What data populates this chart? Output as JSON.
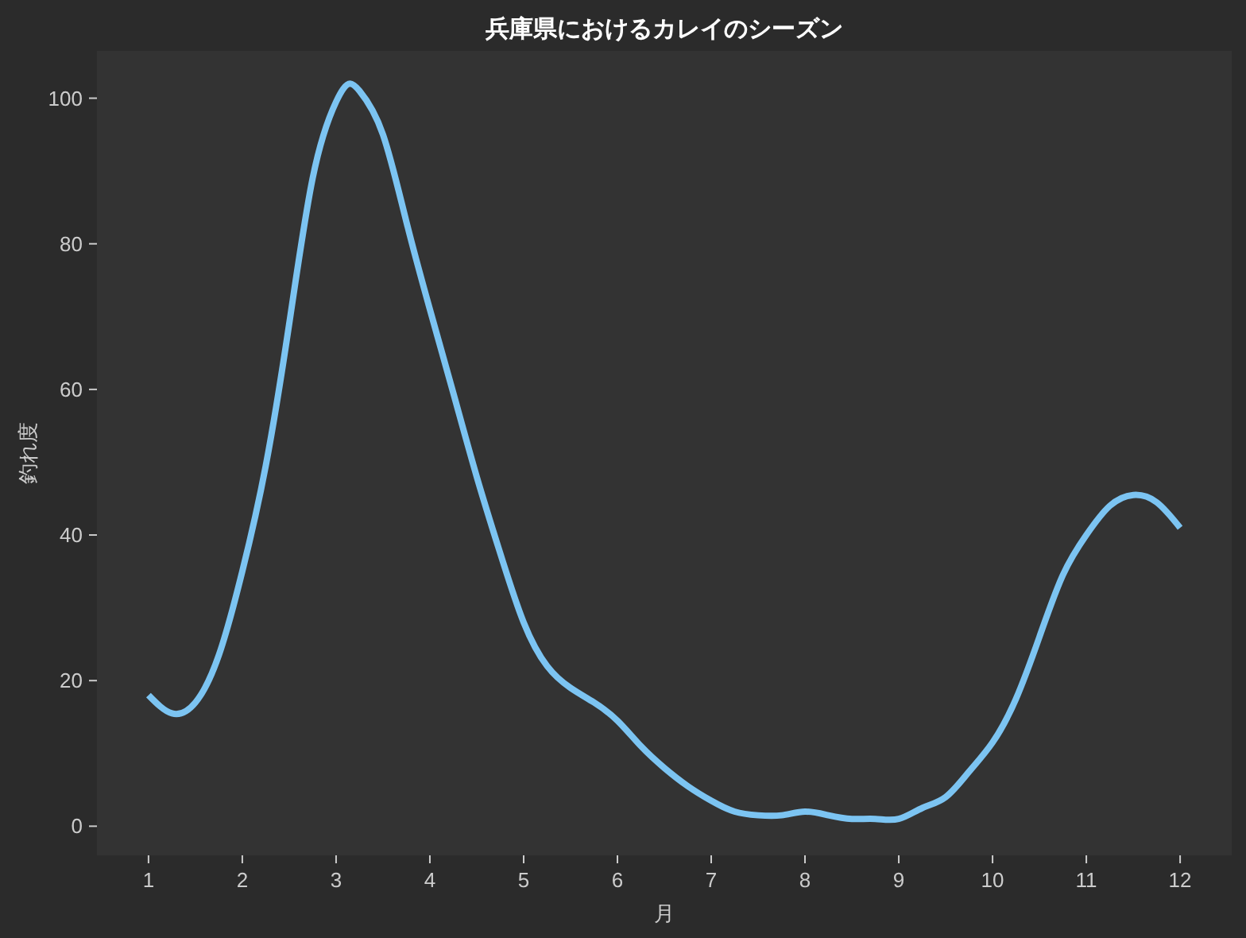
{
  "chart_data": {
    "type": "line",
    "title": "兵庫県におけるカレイのシーズン",
    "xlabel": "月",
    "ylabel": "釣れ度",
    "x": [
      1,
      1.25,
      1.5,
      1.75,
      2,
      2.25,
      2.5,
      2.75,
      3,
      3.15,
      3.25,
      3.5,
      3.75,
      4,
      4.25,
      4.5,
      4.75,
      5,
      5.25,
      5.5,
      5.75,
      6,
      6.25,
      6.5,
      6.75,
      7,
      7.25,
      7.5,
      7.75,
      8,
      8.25,
      8.5,
      8.75,
      9,
      9.25,
      9.5,
      9.75,
      10,
      10.25,
      10.5,
      10.75,
      11,
      11.25,
      11.5,
      11.75,
      12
    ],
    "series": [
      {
        "color": "#7cc4f2",
        "values": [
          18,
          15.5,
          17,
          23.5,
          35,
          49.5,
          69,
          89,
          99.5,
          102,
          101,
          95,
          83,
          71,
          59.5,
          48,
          37.5,
          28,
          22,
          19,
          17,
          14.5,
          11,
          8,
          5.5,
          3.5,
          2,
          1.5,
          1.5,
          2,
          1.5,
          1,
          1,
          1,
          2.5,
          4,
          7.5,
          11.5,
          17.5,
          26,
          34.5,
          40,
          44,
          45.5,
          44.5,
          41
        ]
      }
    ],
    "xlim": [
      0.45,
      12.55
    ],
    "ylim": [
      -4,
      106.5
    ],
    "xticks": [
      1,
      2,
      3,
      4,
      5,
      6,
      7,
      8,
      9,
      10,
      11,
      12
    ],
    "yticks": [
      0,
      20,
      40,
      60,
      80,
      100
    ],
    "marker": "none",
    "line_style": "solid"
  }
}
